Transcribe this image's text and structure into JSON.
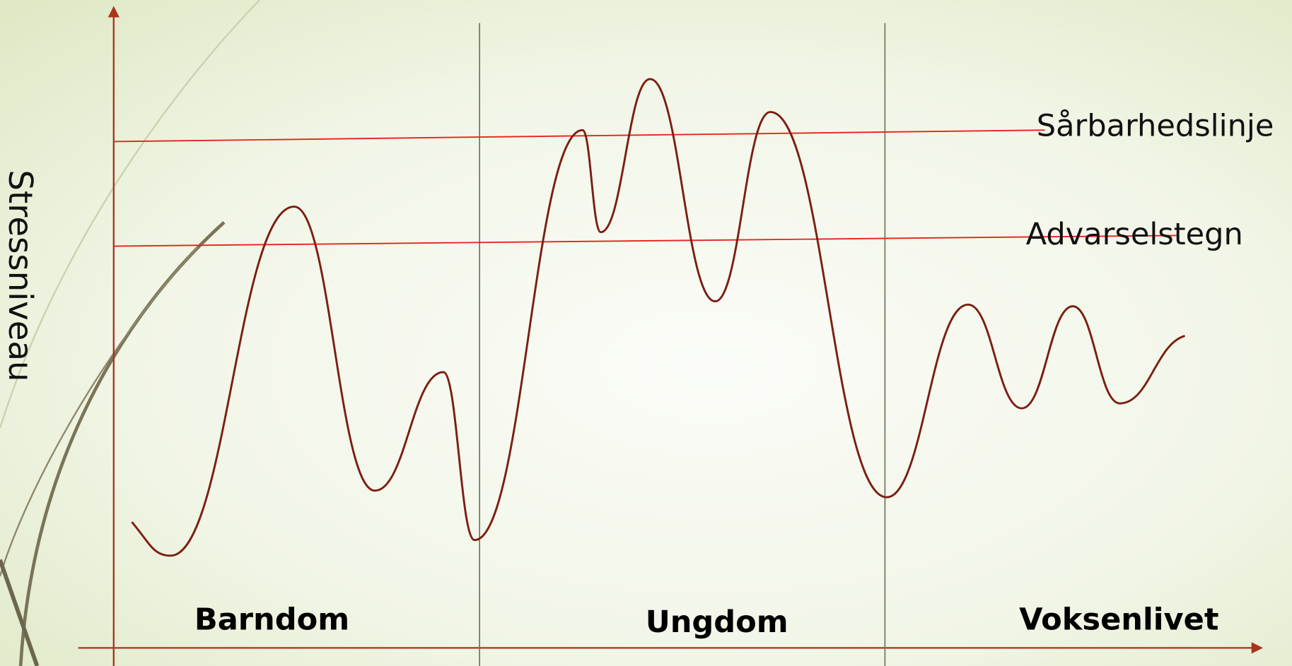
{
  "axis_label": "Stressniveau",
  "lines": [
    {
      "label": "Sårbarhedslinje"
    },
    {
      "label": "Advarselstegn"
    }
  ],
  "phases": [
    "Barndom",
    "Ungdom",
    "Voksenlivet"
  ]
}
